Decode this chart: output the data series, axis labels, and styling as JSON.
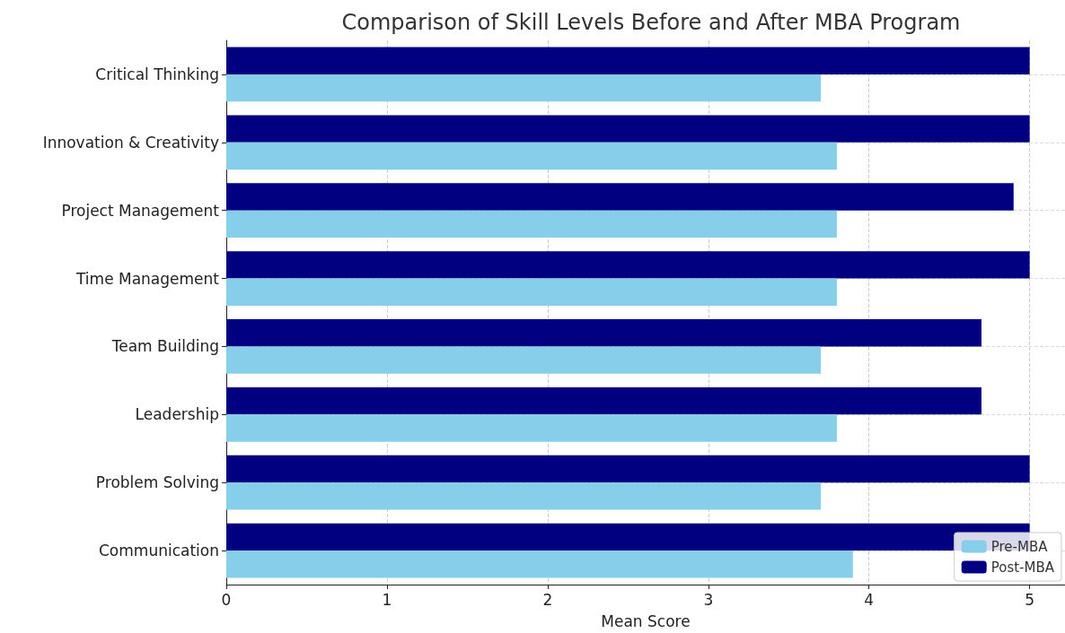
{
  "chart_data": {
    "type": "bar",
    "orientation": "horizontal",
    "title": "Comparison of Skill Levels Before and After MBA Program",
    "xlabel": "Mean Score",
    "categories": [
      "Critical Thinking",
      "Innovation & Creativity",
      "Project Management",
      "Time Management",
      "Team Building",
      "Leadership",
      "Problem Solving",
      "Communication"
    ],
    "series": [
      {
        "name": "Pre-MBA",
        "color": "#87ceeb",
        "values": [
          3.7,
          3.8,
          3.8,
          3.8,
          3.7,
          3.8,
          3.7,
          3.9
        ]
      },
      {
        "name": "Post-MBA",
        "color": "#000080",
        "values": [
          5.0,
          5.0,
          4.9,
          5.0,
          4.7,
          4.7,
          5.0,
          5.0
        ]
      }
    ],
    "xlim": [
      0,
      5.22
    ],
    "xticks": [
      0,
      1,
      2,
      3,
      4,
      5
    ],
    "grid": true,
    "legend": "bottom right"
  }
}
